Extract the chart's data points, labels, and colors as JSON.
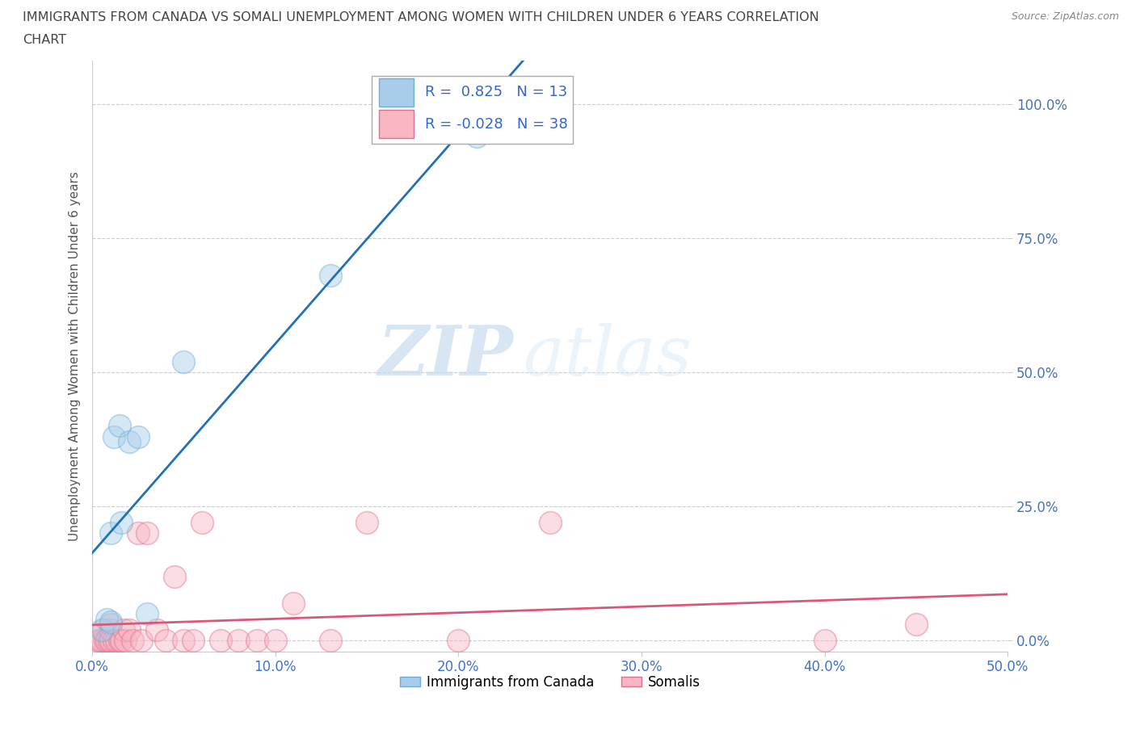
{
  "title_line1": "IMMIGRANTS FROM CANADA VS SOMALI UNEMPLOYMENT AMONG WOMEN WITH CHILDREN UNDER 6 YEARS CORRELATION",
  "title_line2": "CHART",
  "source": "Source: ZipAtlas.com",
  "ylabel": "Unemployment Among Women with Children Under 6 years",
  "xlim": [
    0.0,
    0.5
  ],
  "ylim": [
    -0.02,
    1.08
  ],
  "yticks": [
    0.0,
    0.25,
    0.5,
    0.75,
    1.0
  ],
  "ytick_labels": [
    "0.0%",
    "25.0%",
    "50.0%",
    "75.0%",
    "100.0%"
  ],
  "xticks": [
    0.0,
    0.1,
    0.2,
    0.3,
    0.4,
    0.5
  ],
  "xtick_labels": [
    "0.0%",
    "10.0%",
    "20.0%",
    "30.0%",
    "40.0%",
    "50.0%"
  ],
  "canada_color": "#A8CCEA",
  "canada_edge": "#6BAED6",
  "somali_color": "#F7B6C2",
  "somali_edge": "#E07090",
  "line_canada_color": "#2171B5",
  "line_somali_color": "#D9587A",
  "canada_R": 0.825,
  "canada_N": 13,
  "somali_R": -0.028,
  "somali_N": 38,
  "canada_x": [
    0.005,
    0.008,
    0.01,
    0.01,
    0.012,
    0.015,
    0.016,
    0.02,
    0.025,
    0.03,
    0.05,
    0.13,
    0.21
  ],
  "canada_y": [
    0.02,
    0.04,
    0.035,
    0.2,
    0.38,
    0.4,
    0.22,
    0.37,
    0.38,
    0.05,
    0.52,
    0.68,
    0.94
  ],
  "somali_x": [
    0.003,
    0.004,
    0.005,
    0.006,
    0.007,
    0.008,
    0.009,
    0.01,
    0.01,
    0.01,
    0.012,
    0.013,
    0.015,
    0.016,
    0.017,
    0.018,
    0.02,
    0.022,
    0.025,
    0.027,
    0.03,
    0.035,
    0.04,
    0.045,
    0.05,
    0.055,
    0.06,
    0.07,
    0.08,
    0.09,
    0.1,
    0.11,
    0.13,
    0.15,
    0.2,
    0.25,
    0.4,
    0.45
  ],
  "somali_y": [
    0.0,
    0.0,
    0.0,
    0.02,
    0.0,
    0.0,
    0.0,
    0.0,
    0.02,
    0.03,
    0.0,
    0.0,
    0.0,
    0.0,
    0.02,
    0.0,
    0.02,
    0.0,
    0.2,
    0.0,
    0.2,
    0.02,
    0.0,
    0.12,
    0.0,
    0.0,
    0.22,
    0.0,
    0.0,
    0.0,
    0.0,
    0.07,
    0.0,
    0.22,
    0.0,
    0.22,
    0.0,
    0.03
  ],
  "watermark_zip": "ZIP",
  "watermark_atlas": "atlas",
  "marker_size": 400,
  "alpha": 0.45,
  "background_color": "#FFFFFF",
  "grid_color": "#CCCCCC",
  "legend_label_canada": "Immigrants from Canada",
  "legend_label_somali": "Somalis"
}
